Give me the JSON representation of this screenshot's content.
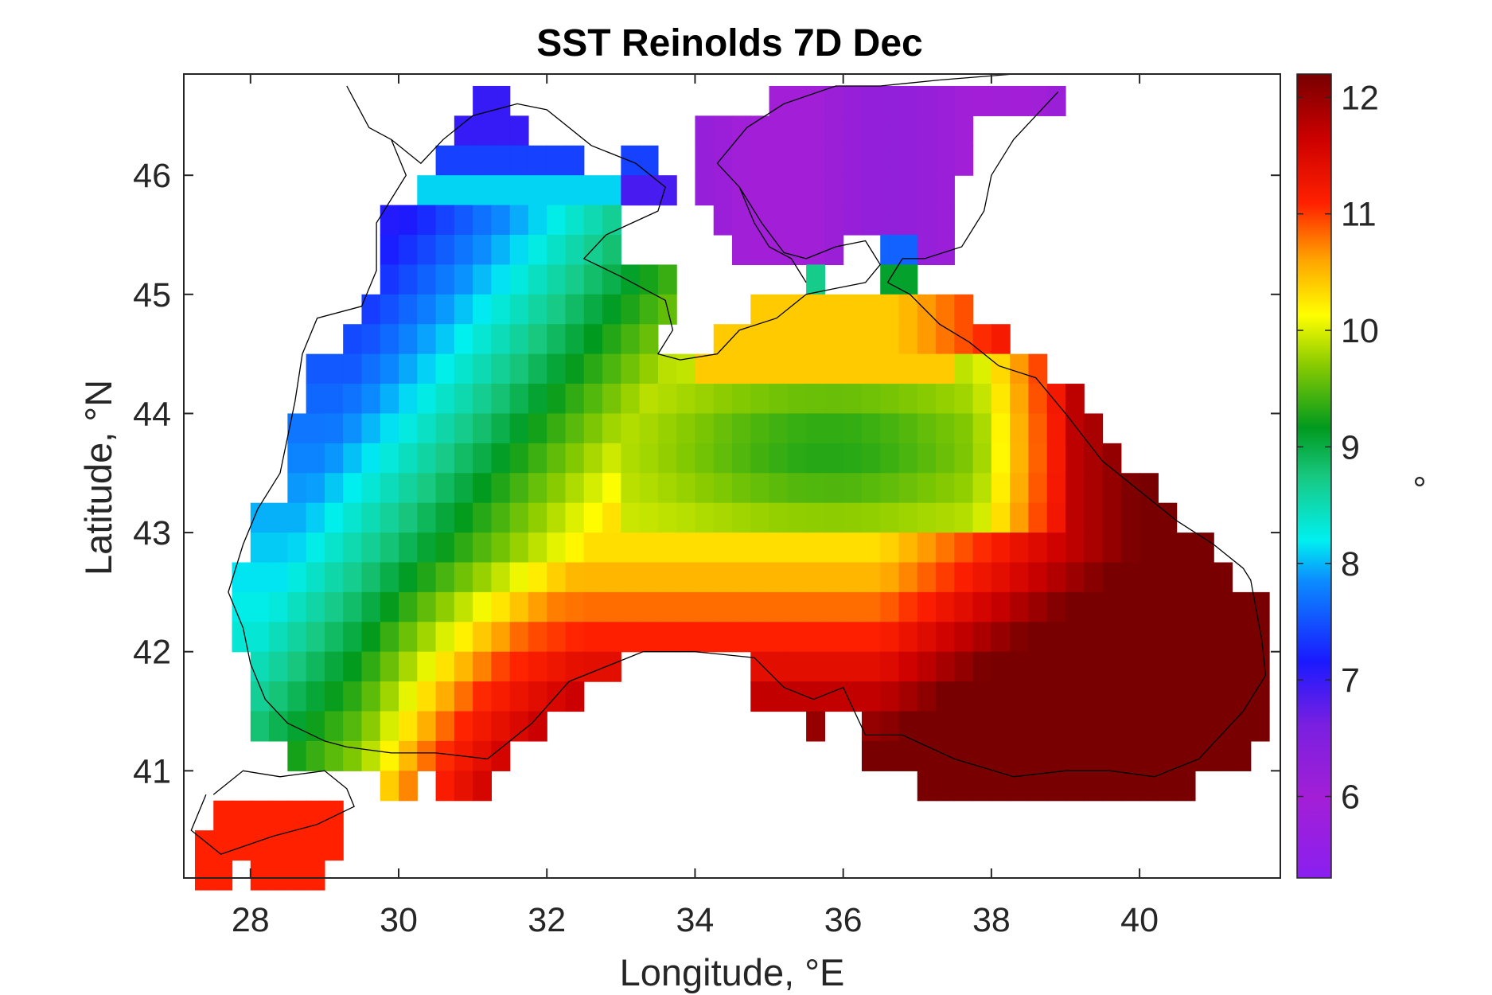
{
  "chart_data": {
    "type": "heatmap",
    "title": "SST Reinolds 7D Dec",
    "xlabel": "Longitude, °E",
    "ylabel": "Latitude, °N",
    "colorbar_label": "°",
    "xlim": [
      27.1,
      41.9
    ],
    "ylim": [
      40.1,
      46.85
    ],
    "xticks": [
      "28",
      "30",
      "32",
      "34",
      "36",
      "38",
      "40"
    ],
    "yticks": [
      "41",
      "42",
      "43",
      "44",
      "45",
      "46"
    ],
    "colorbar_ticks": [
      "6",
      "7",
      "8",
      "9",
      "10",
      "11",
      "12"
    ],
    "color_range": [
      5.3,
      12.2
    ],
    "grid": false,
    "colormap": "jet-like (purple → blue → cyan → green → yellow → red → dark red)",
    "approx_field": {
      "note": "Sea surface temperature over the Black Sea and Sea of Azov, 0.25° grid",
      "azov_sea_range": [
        5.8,
        6.8
      ],
      "northwest_shelf_range": [
        6.8,
        9.5
      ],
      "central_basin_range": [
        9.2,
        10.5
      ],
      "southern_coast_range": [
        10.5,
        11.3
      ],
      "eastern_basin_range": [
        11.5,
        12.2
      ],
      "marmara_sea_range": [
        11.0,
        11.2
      ]
    }
  }
}
